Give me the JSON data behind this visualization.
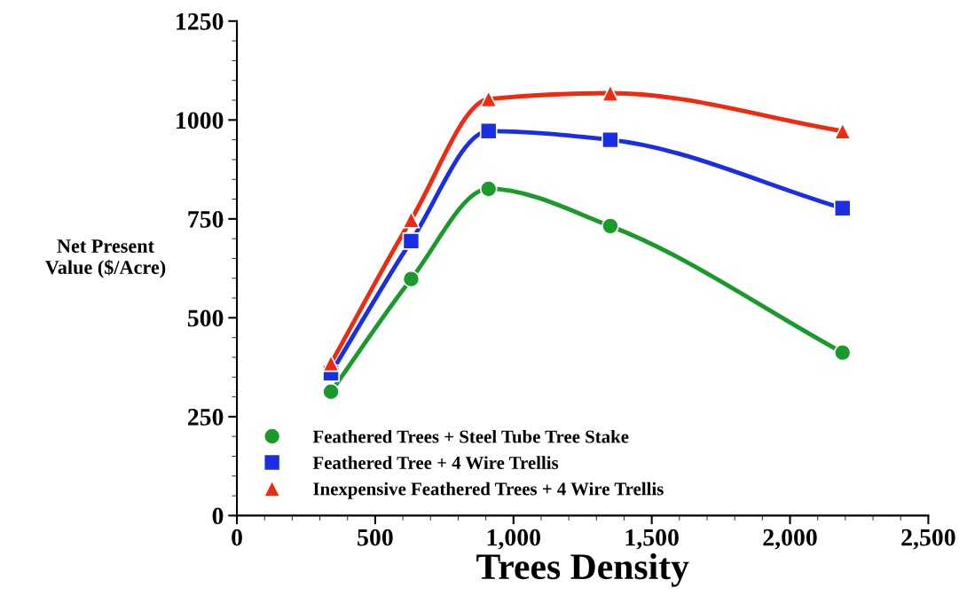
{
  "chart_data": {
    "type": "line",
    "xlabel": "Trees Density",
    "ylabel": "Net Present\nValue ($/Acre)",
    "x": [
      340,
      630,
      910,
      1350,
      2190
    ],
    "series": [
      {
        "name": "Feathered Trees + Steel Tube Tree Stake",
        "color": "#1a9a2a",
        "marker": "circle",
        "values": [
          313,
          598,
          826,
          732,
          412
        ]
      },
      {
        "name": "Feathered Tree + 4 Wire Trellis",
        "color": "#1a2ee6",
        "marker": "square",
        "values": [
          360,
          694,
          972,
          950,
          777
        ]
      },
      {
        "name": "Inexpensive Feathered Trees + 4 Wire Trellis",
        "color": "#ee2a10",
        "marker": "triangle",
        "values": [
          385,
          748,
          1053,
          1068,
          972
        ]
      }
    ],
    "xlim": [
      0,
      2500
    ],
    "xticks": [
      0,
      500,
      {
        "value": 1000,
        "label": "1,000"
      },
      {
        "value": 1500,
        "label": "1,500"
      },
      {
        "value": 2000,
        "label": "2,000"
      },
      {
        "value": 2500,
        "label": "2,500"
      }
    ],
    "ylim": [
      0,
      1250
    ],
    "yticks": [
      0,
      250,
      500,
      750,
      1000,
      1250
    ],
    "grid": false,
    "legend": "bottom left",
    "line_style": "solid"
  }
}
